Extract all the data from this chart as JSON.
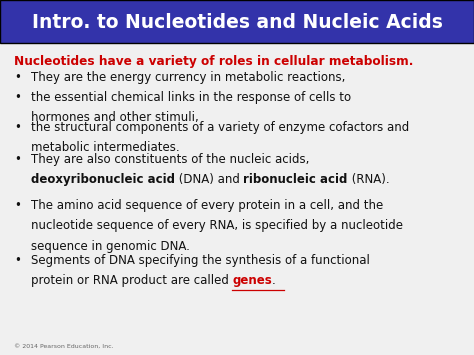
{
  "title": "Intro. to Nucleotides and Nucleic Acids",
  "title_bg": "#3333AA",
  "title_color": "#FFFFFF",
  "bg_color": "#F0F0F0",
  "red_color": "#CC0000",
  "black_color": "#111111",
  "subtitle": "Nucleotides have a variety of roles in cellular metabolism.",
  "bullet1_line1": "They are the energy currency in metabolic reactions,",
  "bullet2_line1": "the essential chemical links in the response of cells to",
  "bullet2_line2": "hormones and other stimuli,",
  "bullet3_line1": "the structural components of a variety of enzyme cofactors and",
  "bullet3_line2": "metabolic intermediates.",
  "bullet4_line1": "They are also constituents of the nucleic acids,",
  "bullet4_line2_bold1": "deoxyribonucleic acid",
  "bullet4_line2_norm1": " (DNA) and ",
  "bullet4_line2_bold2": "ribonucleic acid",
  "bullet4_line2_norm2": " (RNA).",
  "bullet5_line1": "The amino acid sequence of every protein in a cell, and the",
  "bullet5_line2": "nucleotide sequence of every RNA, is specified by a nucleotide",
  "bullet5_line3": "sequence in genomic DNA.",
  "bullet6_line1": "Segments of DNA specifying the synthesis of a functional",
  "bullet6_line2_norm1": "protein or RNA product are called ",
  "bullet6_line2_red": "genes",
  "bullet6_line2_norm2": ".",
  "footer": "© 2014 Pearson Education, Inc."
}
